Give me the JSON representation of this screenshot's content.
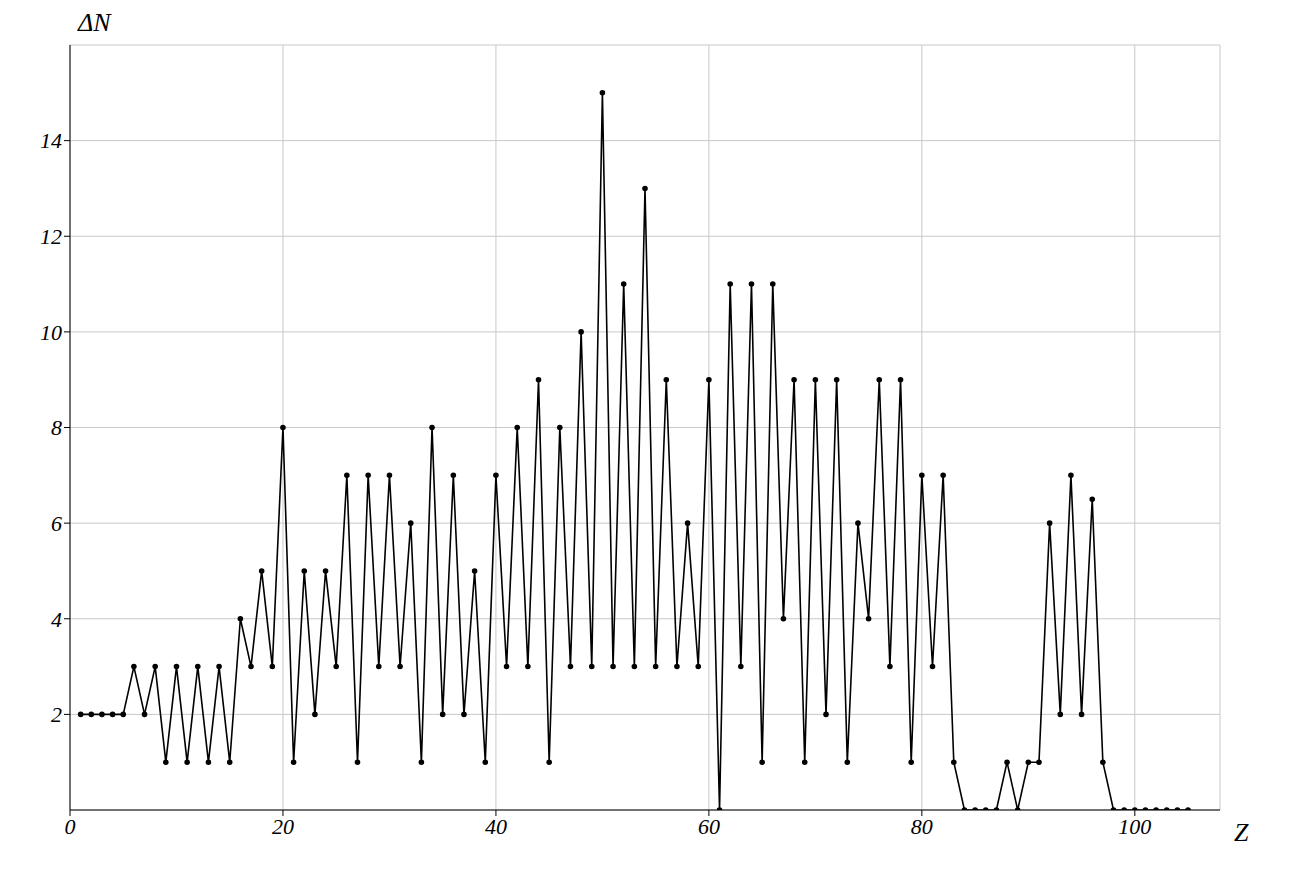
{
  "chart_data": {
    "type": "line",
    "x_label": "Z",
    "y_label": "ΔN",
    "x": [
      1,
      2,
      3,
      4,
      5,
      6,
      7,
      8,
      9,
      10,
      11,
      12,
      13,
      14,
      15,
      16,
      17,
      18,
      19,
      20,
      21,
      22,
      23,
      24,
      25,
      26,
      27,
      28,
      29,
      30,
      31,
      32,
      33,
      34,
      35,
      36,
      37,
      38,
      39,
      40,
      41,
      42,
      43,
      44,
      45,
      46,
      47,
      48,
      49,
      50,
      51,
      52,
      53,
      54,
      55,
      56,
      57,
      58,
      59,
      60,
      61,
      62,
      63,
      64,
      65,
      66,
      67,
      68,
      69,
      70,
      71,
      72,
      73,
      74,
      75,
      76,
      77,
      78,
      79,
      80,
      81,
      82,
      83,
      84,
      85,
      86,
      87,
      88,
      89,
      90,
      91,
      92,
      93,
      94,
      95,
      96,
      97,
      98,
      99,
      100,
      101,
      102,
      103,
      104,
      105
    ],
    "values": [
      2,
      2,
      2,
      2,
      2,
      3,
      2,
      3,
      1,
      3,
      1,
      3,
      1,
      3,
      1,
      4,
      3,
      5,
      3,
      8,
      1,
      5,
      2,
      5,
      3,
      7,
      1,
      7,
      3,
      7,
      3,
      6,
      1,
      8,
      2,
      7,
      2,
      5,
      1,
      7,
      3,
      8,
      3,
      9,
      1,
      8,
      3,
      10,
      3,
      15,
      3,
      11,
      3,
      13,
      3,
      9,
      3,
      6,
      3,
      9,
      0,
      11,
      3,
      11,
      1,
      11,
      4,
      9,
      1,
      9,
      2,
      9,
      1,
      6,
      4,
      9,
      3,
      9,
      1,
      7,
      3,
      7,
      1,
      0,
      0,
      0,
      0,
      1,
      0,
      1,
      1,
      6,
      2,
      7,
      2,
      6.5,
      1,
      0,
      0,
      0,
      0,
      0,
      0,
      0,
      0
    ],
    "color": "#000000",
    "xlim": [
      0,
      108
    ],
    "xticks": [
      0,
      20,
      40,
      60,
      80,
      100
    ],
    "ylim": [
      0,
      16
    ],
    "yticks": [
      2,
      4,
      6,
      8,
      10,
      12,
      14
    ],
    "grid": true,
    "marker": "circle",
    "line_style": "solid"
  }
}
